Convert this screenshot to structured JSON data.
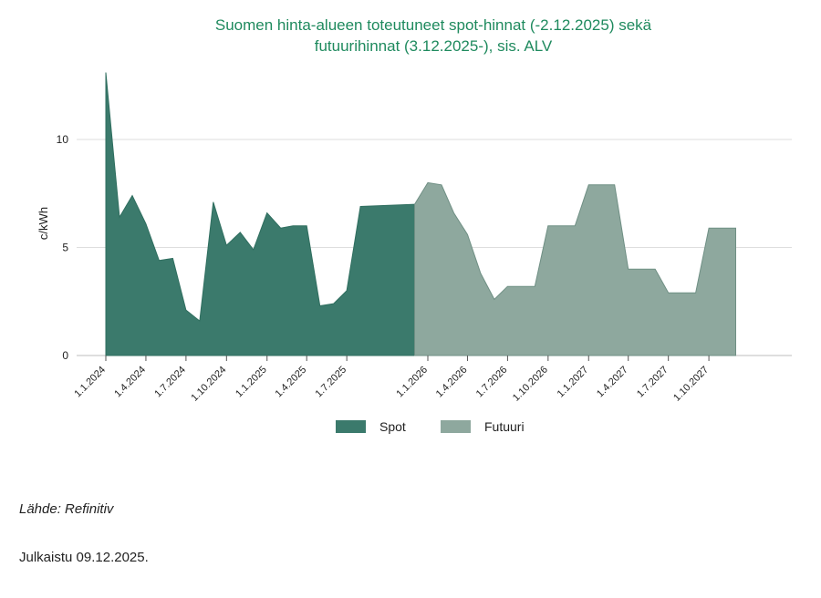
{
  "chart_data": {
    "type": "area",
    "title": "Suomen hinta-alueen toteutuneet spot-hinnat (-2.12.2025) sekä futuurihinnat (3.12.2025-), sis. ALV",
    "title_lines": [
      "Suomen hinta-alueen toteutuneet spot-hinnat (-2.12.2025) sekä",
      "futuurihinnat (3.12.2025-), sis. ALV"
    ],
    "ylabel": "c/kWh",
    "xlabel": "",
    "ylim": [
      0,
      13.5
    ],
    "yticks": [
      0,
      5,
      10
    ],
    "grid": true,
    "legend_position": "bottom-center",
    "x_tick_labels": [
      "1.1.2024",
      "1.4.2024",
      "1.7.2024",
      "1.10.2024",
      "1.1.2025",
      "1.4.2025",
      "1.7.2025",
      "1.1.2026",
      "1.4.2026",
      "1.7.2026",
      "1.10.2026",
      "1.1.2027",
      "1.4.2027",
      "1.7.2027",
      "1.10.2027"
    ],
    "x_tick_dates": [
      "2024-01-01",
      "2024-04-01",
      "2024-07-01",
      "2024-10-01",
      "2025-01-01",
      "2025-04-01",
      "2025-07-01",
      "2026-01-01",
      "2026-04-01",
      "2026-07-01",
      "2026-10-01",
      "2027-01-01",
      "2027-04-01",
      "2027-07-01",
      "2027-10-01"
    ],
    "series": [
      {
        "name": "Spot",
        "color": "#3b7a6c",
        "x": [
          "2024-01-01",
          "2024-02-01",
          "2024-03-01",
          "2024-04-01",
          "2024-05-01",
          "2024-06-01",
          "2024-07-01",
          "2024-08-01",
          "2024-09-01",
          "2024-10-01",
          "2024-11-01",
          "2024-12-01",
          "2025-01-01",
          "2025-02-01",
          "2025-03-01",
          "2025-04-01",
          "2025-05-01",
          "2025-06-01",
          "2025-07-01",
          "2025-08-01",
          "2025-12-02"
        ],
        "values": [
          13.1,
          6.4,
          7.4,
          6.1,
          4.4,
          4.5,
          2.1,
          1.6,
          7.1,
          5.1,
          5.7,
          4.9,
          6.6,
          5.9,
          6.0,
          6.0,
          2.3,
          2.4,
          3.0,
          6.9,
          7.0
        ]
      },
      {
        "name": "Futuuri",
        "color": "#8ea89e",
        "x": [
          "2025-12-02",
          "2026-01-01",
          "2026-02-01",
          "2026-03-01",
          "2026-04-01",
          "2026-05-01",
          "2026-06-01",
          "2026-07-01",
          "2026-08-01",
          "2026-09-01",
          "2026-10-01",
          "2026-11-01",
          "2026-12-01",
          "2027-01-01",
          "2027-02-01",
          "2027-03-01",
          "2027-04-01",
          "2027-05-01",
          "2027-06-01",
          "2027-07-01",
          "2027-08-01",
          "2027-09-01",
          "2027-10-01",
          "2027-11-01",
          "2027-12-01"
        ],
        "values": [
          7.0,
          8.0,
          7.9,
          6.6,
          5.6,
          3.8,
          2.6,
          3.2,
          3.2,
          3.2,
          6.0,
          6.0,
          6.0,
          7.9,
          7.9,
          7.9,
          4.0,
          4.0,
          4.0,
          2.9,
          2.9,
          2.9,
          5.9,
          5.9,
          5.9
        ]
      }
    ]
  },
  "footer": {
    "source": "Lähde: Refinitiv",
    "published": "Julkaistu 09.12.2025."
  }
}
